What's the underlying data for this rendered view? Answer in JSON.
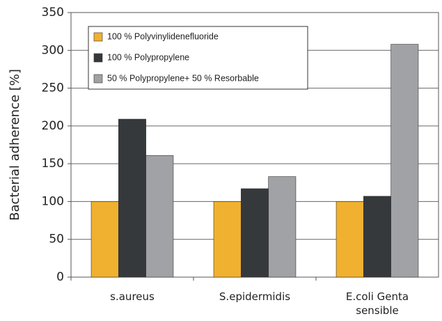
{
  "chart_data": {
    "type": "bar",
    "y_label": "Bacterial adherence [%]",
    "categories": [
      "s.aureus",
      "S.epidermidis",
      "E.coli Genta sensible"
    ],
    "series": [
      {
        "name": "100 % Polyvinylidenefluoride",
        "color": "#f0b030",
        "values": [
          100,
          100,
          100
        ]
      },
      {
        "name": "100 % Polypropylene",
        "color": "#35393c",
        "values": [
          209,
          117,
          107
        ]
      },
      {
        "name": "50 % Polypropylene+ 50 % Resorbable",
        "color": "#a0a2a5",
        "values": [
          161,
          133,
          308
        ]
      }
    ],
    "ylim": [
      0,
      350
    ],
    "yticks": [
      0,
      50,
      100,
      150,
      200,
      250,
      300,
      350
    ],
    "grid": true,
    "legend": "upper left"
  }
}
